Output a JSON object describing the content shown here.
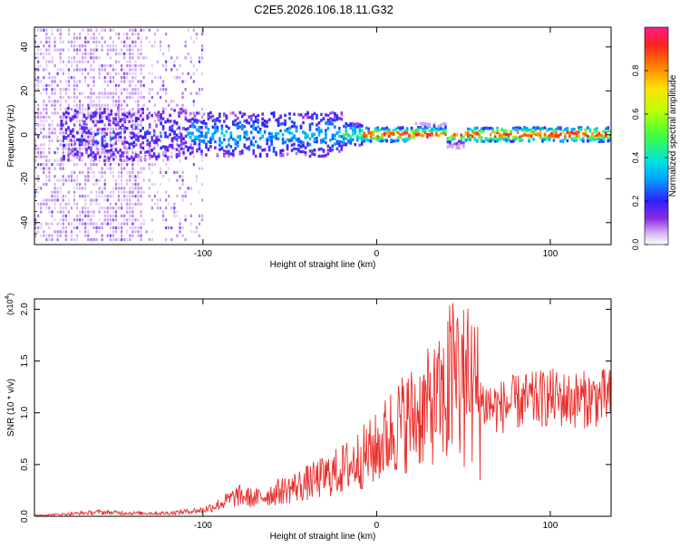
{
  "title": "C2E5.2026.106.18.11.G32",
  "chart_data": [
    {
      "type": "heatmap",
      "xlabel": "Height of straight line (km)",
      "ylabel": "Frequency (Hz)",
      "xlim": [
        -197,
        135
      ],
      "ylim": [
        -50,
        49
      ],
      "xticks": [
        -100,
        0,
        100
      ],
      "yticks": [
        -40,
        -20,
        0,
        20,
        40
      ],
      "colorbar": {
        "label": "Normalized spectral amplitude",
        "range": [
          0.0,
          1.0
        ],
        "ticks": [
          0.0,
          0.2,
          0.4,
          0.6,
          0.8
        ]
      },
      "ridge": {
        "center_frequency_hz": 0,
        "noise_region_km": [
          -197,
          -110
        ],
        "strong_signal_from_km": -10,
        "peak_amplitude": 0.95
      }
    },
    {
      "type": "line",
      "xlabel": "Height of straight line (km)",
      "ylabel": "SNR (10 * v/v)",
      "y_multiplier": "(x10",
      "y_multiplier_exp": "4",
      "y_multiplier_close": ")",
      "xlim": [
        -197,
        135
      ],
      "ylim": [
        0,
        2.1
      ],
      "xticks": [
        -100,
        0,
        100
      ],
      "yticks": [
        "0.0",
        "0.5",
        "1.0",
        "1.5",
        "2.0"
      ],
      "line_color": "#e8302d",
      "series": [
        {
          "name": "SNR",
          "x": [
            -197,
            -180,
            -160,
            -140,
            -120,
            -100,
            -90,
            -80,
            -70,
            -60,
            -50,
            -40,
            -30,
            -20,
            -10,
            0,
            10,
            20,
            30,
            40,
            45,
            50,
            55,
            60,
            70,
            80,
            90,
            100,
            110,
            120,
            135
          ],
          "y": [
            0.01,
            0.02,
            0.04,
            0.03,
            0.03,
            0.06,
            0.12,
            0.2,
            0.17,
            0.22,
            0.27,
            0.32,
            0.38,
            0.45,
            0.55,
            0.65,
            0.85,
            0.95,
            1.05,
            1.15,
            1.35,
            1.25,
            1.2,
            1.1,
            1.05,
            1.1,
            1.12,
            1.15,
            1.12,
            1.13,
            1.15
          ]
        }
      ]
    }
  ]
}
